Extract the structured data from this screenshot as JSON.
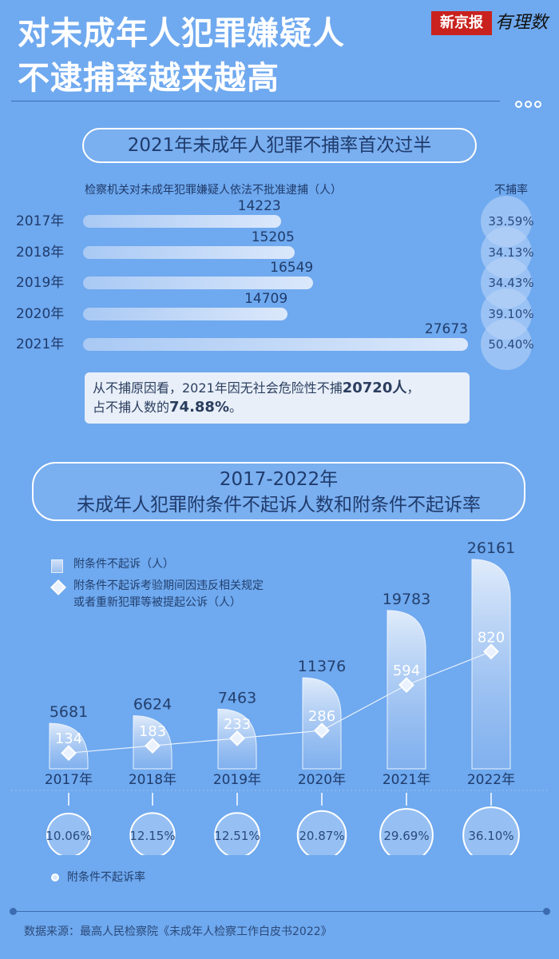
{
  "header": {
    "title_line1": "对未成年人犯罪嫌疑人",
    "title_line2": "不逮捕率越来越高",
    "logo_text": "新京报",
    "logo_script": "有理数"
  },
  "section1": {
    "title": "2021年未成年人犯罪不捕率首次过半",
    "subtitle": "检察机关对未成年犯罪嫌疑人依法不批准逮捕（人）",
    "rate_header": "不捕率",
    "note_part1": "从不捕原因看，2021年因无社会危险性不捕",
    "note_bold1": "20720人",
    "note_part2": "，",
    "note_part3": "占不捕人数的",
    "note_bold2": "74.88%",
    "note_part4": "。"
  },
  "section2": {
    "title_line1": "2017-2022年",
    "title_line2": "未成年人犯罪附条件不起诉人数和附条件不起诉率",
    "legend_bar": "附条件不起诉（人）",
    "legend_line_1": "附条件不起诉考验期间因违反相关规定",
    "legend_line_2": "或者重新犯罪等被提起公诉（人）",
    "legend_rate": "附条件不起诉率"
  },
  "footer": {
    "source": "数据来源：最高人民检察院《未成年人检察工作白皮书2022》"
  },
  "colors": {
    "background": "#6fa9ef",
    "text_dark": "#1f3b6b",
    "bar_light": "#dbe8fb",
    "logo_red": "#c9221e"
  },
  "chart_data": [
    {
      "type": "bar",
      "orientation": "horizontal",
      "title": "2021年未成年人犯罪不捕率首次过半",
      "categories": [
        "2017年",
        "2018年",
        "2019年",
        "2020年",
        "2021年"
      ],
      "series": [
        {
          "name": "检察机关对未成年犯罪嫌疑人依法不批准逮捕（人）",
          "values": [
            14223,
            15205,
            16549,
            14709,
            27673
          ]
        },
        {
          "name": "不捕率",
          "values": [
            "33.59%",
            "34.13%",
            "34.43%",
            "39.10%",
            "50.40%"
          ]
        }
      ],
      "xlim": [
        0,
        28000
      ],
      "grid": false
    },
    {
      "type": "bar",
      "title": "2017-2022年 未成年人犯罪附条件不起诉人数和附条件不起诉率",
      "categories": [
        "2017年",
        "2018年",
        "2019年",
        "2020年",
        "2021年",
        "2022年"
      ],
      "series": [
        {
          "name": "附条件不起诉（人）",
          "type": "bar",
          "values": [
            5681,
            6624,
            7463,
            11376,
            19783,
            26161
          ]
        },
        {
          "name": "附条件不起诉考验期间因违反相关规定或者重新犯罪等被提起公诉（人）",
          "type": "line",
          "values": [
            134,
            183,
            233,
            286,
            594,
            820
          ]
        },
        {
          "name": "附条件不起诉率",
          "type": "circle",
          "values": [
            "10.06%",
            "12.15%",
            "12.51%",
            "20.87%",
            "29.69%",
            "36.10%"
          ]
        }
      ],
      "ylim": [
        0,
        28000
      ],
      "grid": false
    }
  ]
}
